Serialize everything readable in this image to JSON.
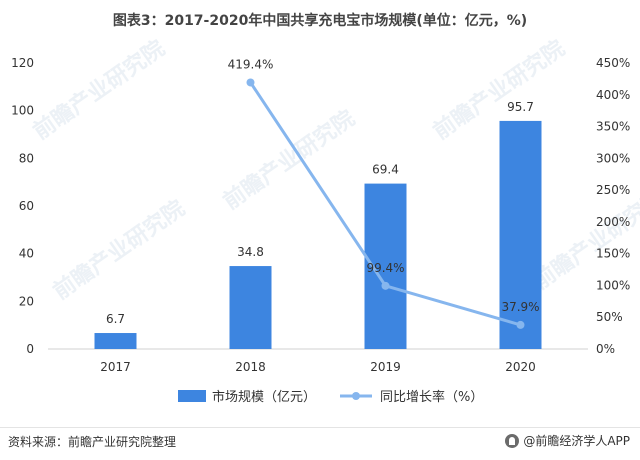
{
  "title": "图表3：2017-2020年中国共享充电宝市场规模(单位：亿元，%)",
  "source": "资料来源：前瞻产业研究院整理",
  "brand": "@前瞻经济学人APP",
  "watermark": "前瞻产业研究院",
  "colors": {
    "bar": "#3d85e0",
    "line": "#86b6ee",
    "axis_text": "#333333",
    "axis_line": "#d0d0d0"
  },
  "chart_data": {
    "type": "bar",
    "categories": [
      "2017",
      "2018",
      "2019",
      "2020"
    ],
    "series": [
      {
        "name": "市场规模（亿元）",
        "type": "bar",
        "axis": "left",
        "values": [
          6.7,
          34.8,
          69.4,
          95.7
        ],
        "labels": [
          "6.7",
          "34.8",
          "69.4",
          "95.7"
        ]
      },
      {
        "name": "同比增长率（%）",
        "type": "line",
        "axis": "right",
        "values": [
          null,
          419.4,
          99.4,
          37.9
        ],
        "labels": [
          "",
          "419.4%",
          "99.4%",
          "37.9%"
        ]
      }
    ],
    "y_left": {
      "min": 0,
      "max": 120,
      "ticks": [
        "0",
        "20",
        "40",
        "60",
        "80",
        "100",
        "120"
      ]
    },
    "y_right": {
      "min": 0,
      "max": 450,
      "ticks": [
        "0%",
        "50%",
        "100%",
        "150%",
        "200%",
        "250%",
        "300%",
        "350%",
        "400%",
        "450%"
      ]
    },
    "grid": false,
    "legend_position": "bottom"
  }
}
